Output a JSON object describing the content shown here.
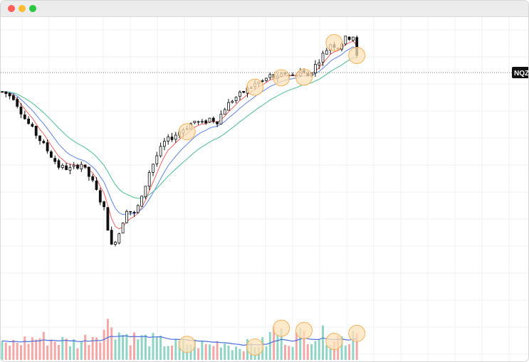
{
  "window": {
    "controls": [
      "close",
      "minimize",
      "zoom"
    ]
  },
  "chart_data": {
    "type": "candlestick",
    "title": "",
    "price_tag": "NQZ",
    "grid": true,
    "colors": {
      "candle": "#111111",
      "ma_short": "#f26d6d",
      "ma_mid": "#6c8ee8",
      "ma_long": "#5cc39a",
      "volume_up": "#8fd4c4",
      "volume_down": "#f4a7a7",
      "volume_ma": "#4a6fe0",
      "highlight_fill": "#fde2b8",
      "highlight_stroke": "#f5b25a"
    },
    "ylim": [
      0,
      100
    ],
    "volume_ylim": [
      0,
      100
    ],
    "anchors": [
      [
        0,
        74
      ],
      [
        3,
        72
      ],
      [
        6,
        64
      ],
      [
        9,
        58
      ],
      [
        12,
        52
      ],
      [
        15,
        46
      ],
      [
        18,
        45
      ],
      [
        21,
        47
      ],
      [
        24,
        40
      ],
      [
        27,
        30
      ],
      [
        29,
        16
      ],
      [
        31,
        21
      ],
      [
        33,
        30
      ],
      [
        35,
        28
      ],
      [
        37,
        34
      ],
      [
        39,
        44
      ],
      [
        41,
        50
      ],
      [
        43,
        55
      ],
      [
        45,
        57
      ],
      [
        47,
        59
      ],
      [
        49,
        61
      ],
      [
        51,
        63
      ],
      [
        53,
        62
      ],
      [
        55,
        64
      ],
      [
        57,
        63
      ],
      [
        59,
        68
      ],
      [
        61,
        71
      ],
      [
        63,
        73
      ],
      [
        65,
        75
      ],
      [
        67,
        77
      ],
      [
        69,
        78
      ],
      [
        71,
        80
      ],
      [
        73,
        79
      ],
      [
        75,
        81
      ],
      [
        77,
        80
      ],
      [
        79,
        82
      ],
      [
        81,
        80
      ],
      [
        83,
        84
      ],
      [
        85,
        88
      ],
      [
        87,
        92
      ],
      [
        89,
        91
      ],
      [
        91,
        94
      ],
      [
        93,
        95
      ],
      [
        94,
        87
      ]
    ],
    "volume_anchors": [
      [
        0,
        22
      ],
      [
        5,
        28
      ],
      [
        10,
        34
      ],
      [
        14,
        30
      ],
      [
        20,
        26
      ],
      [
        24,
        38
      ],
      [
        27,
        48
      ],
      [
        29,
        58
      ],
      [
        31,
        42
      ],
      [
        35,
        34
      ],
      [
        40,
        30
      ],
      [
        45,
        24
      ],
      [
        50,
        26
      ],
      [
        55,
        22
      ],
      [
        58,
        28
      ],
      [
        62,
        20
      ],
      [
        66,
        24
      ],
      [
        70,
        26
      ],
      [
        72,
        46
      ],
      [
        76,
        30
      ],
      [
        80,
        40
      ],
      [
        84,
        38
      ],
      [
        88,
        36
      ],
      [
        92,
        30
      ],
      [
        94,
        60
      ]
    ],
    "highlights": [
      {
        "bar": 49,
        "offset": 1.2
      },
      {
        "bar": 67,
        "offset": 1.5
      },
      {
        "bar": 74,
        "offset": 1.5
      },
      {
        "bar": 80,
        "offset": 1.8
      },
      {
        "bar": 88,
        "offset": -1.8
      },
      {
        "bar": 94,
        "offset": 0
      }
    ],
    "volume_highlights": [
      49,
      67,
      74,
      80,
      88,
      94
    ]
  }
}
